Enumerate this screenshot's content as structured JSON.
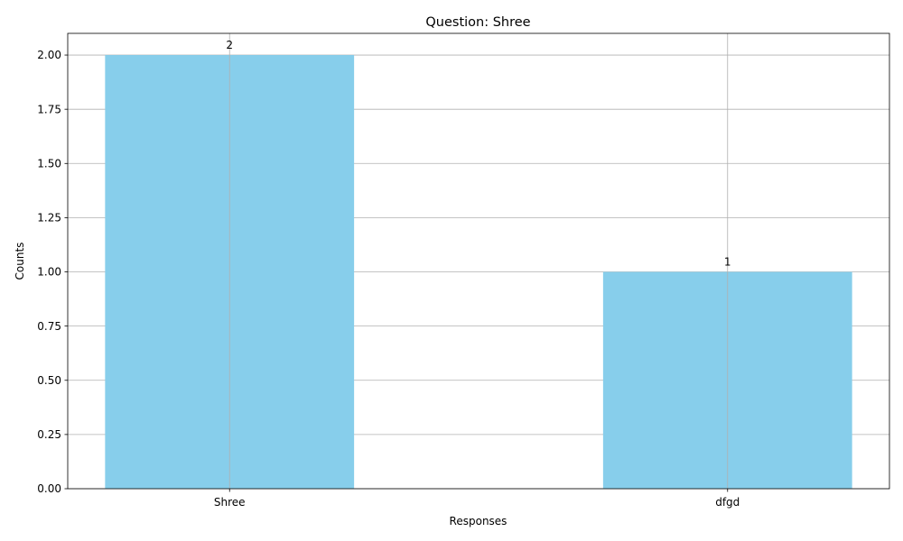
{
  "chart_data": {
    "type": "bar",
    "title": "Question: Shree",
    "xlabel": "Responses",
    "ylabel": "Counts",
    "categories": [
      "Shree",
      "dfgd"
    ],
    "values": [
      2,
      1
    ],
    "data_labels": [
      "2",
      "1"
    ],
    "ylim": [
      0,
      2.1
    ],
    "yticks": [
      0,
      0.25,
      0.5,
      0.75,
      1.0,
      1.25,
      1.5,
      1.75,
      2.0
    ],
    "ytick_labels": [
      "0.00",
      "0.25",
      "0.50",
      "0.75",
      "1.00",
      "1.25",
      "1.50",
      "1.75",
      "2.00"
    ],
    "grid": true,
    "bar_color": "#87CEEB",
    "grid_color": "#b0b0b0"
  }
}
